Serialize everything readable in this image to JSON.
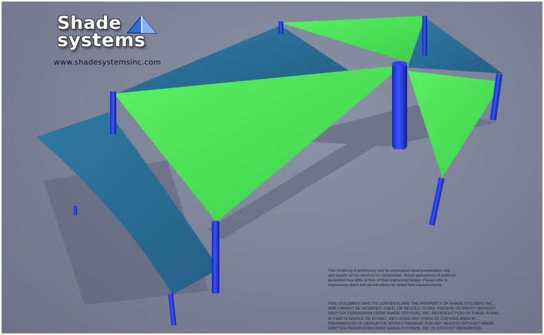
{
  "logo": {
    "line1": "Shade",
    "line2": "systems",
    "icon": "sail-triangle-icon",
    "colors": {
      "icon_blue": "#2a6fd6",
      "icon_light": "#8fc1ff"
    }
  },
  "website": "www.shadesystemsinc.com",
  "colors": {
    "background": "#7b8196",
    "green_sail": "#4dde5a",
    "blue_sail": "#2d6f96",
    "post": "#1f3bff"
  },
  "disclaimer": {
    "lines": [
      "This rendering is preliminary and for conceptual visual presentation only",
      "and should not be relied on for construction.  Actual appearance of products",
      "presented may differ at time of final engineered design.  Please refer to",
      "engineering plans and specifications for actual field measurements."
    ]
  },
  "legal": {
    "lines": [
      "THIS DOCUMENT AND ITS CONTENTS ARE THE PROPERTY OF SHADE SYSTEMS, INC.,",
      "AND CANNOT BE MODIFIED, USED, OR RESOLD TO ANY PERSON OR ENTITY WITHOUT",
      "WRITTEN PERMISSION FROM SHADE SYSTEMS, INC. REPRODUCTION OF THESE PLANS,",
      "EITHER IN WHOLE OR IN PART, INCLUDING ANY FORM OF COPYING AND/OR",
      "PREPARATION OF DERIVATIVE WORKS THEREOF, FOR ANY REASON WITHOUT PRIOR",
      "WRITTEN PERMISSION FROM SHADE SYSTEMS, INC. IS STRICTLY PROHIBITED."
    ]
  }
}
